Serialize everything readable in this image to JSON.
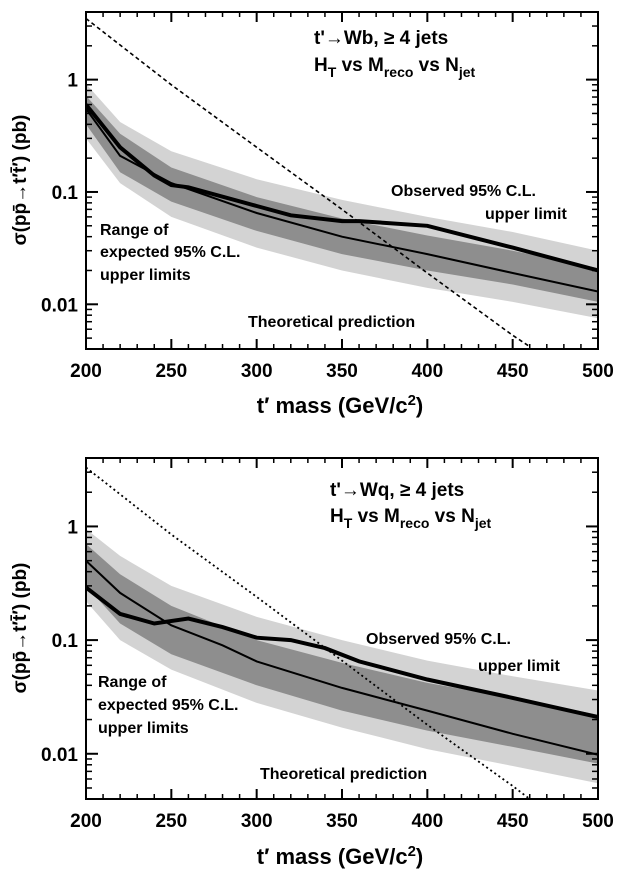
{
  "chart_data": [
    {
      "type": "line",
      "yscale": "log",
      "xlim": [
        200,
        500
      ],
      "ylim": [
        0.004,
        4
      ],
      "xticks": [
        "200",
        "250",
        "300",
        "350",
        "400",
        "450",
        "500"
      ],
      "yticks": [
        {
          "value": 1,
          "label": "1"
        },
        {
          "value": 0.1,
          "label": "0.1"
        },
        {
          "value": 0.01,
          "label": "0.01"
        }
      ],
      "xlabel": {
        "pre": "t′ mass (GeV/c",
        "sup": "2",
        "post": ")"
      },
      "ylabel": "σ(pp̄→t′t̄′)  (pb)",
      "title_line1": "t'→Wb, ≥ 4 jets",
      "title_line2": {
        "a": "H",
        "a_sub": "T",
        "b": " vs M",
        "b_sub": "reco",
        "c": "  vs N",
        "c_sub": "jet"
      },
      "annotations": {
        "observed_1": "Observed 95% C.L.",
        "observed_2": "upper limit",
        "range_1": "Range of",
        "range_2": "expected 95% C.L.",
        "range_3": "upper limits",
        "theory": "Theoretical prediction"
      },
      "colors": {
        "outer_band": "#d3d3d3",
        "inner_band": "#8e8e8e",
        "lines": "#000000"
      },
      "outer_band": {
        "x": [
          200,
          220,
          250,
          300,
          350,
          400,
          450,
          500
        ],
        "lower": [
          0.3,
          0.12,
          0.06,
          0.032,
          0.02,
          0.014,
          0.0105,
          0.0075
        ],
        "upper": [
          0.92,
          0.42,
          0.23,
          0.13,
          0.085,
          0.06,
          0.044,
          0.03
        ]
      },
      "inner_band": {
        "x": [
          200,
          220,
          250,
          300,
          350,
          400,
          450,
          500
        ],
        "lower": [
          0.4,
          0.15,
          0.082,
          0.045,
          0.028,
          0.02,
          0.015,
          0.0105
        ],
        "upper": [
          0.72,
          0.33,
          0.165,
          0.09,
          0.058,
          0.041,
          0.03,
          0.021
        ]
      },
      "series": [
        {
          "role": "expected",
          "x": [
            200,
            220,
            250,
            300,
            350,
            400,
            450,
            500
          ],
          "y": [
            0.55,
            0.21,
            0.12,
            0.065,
            0.04,
            0.028,
            0.019,
            0.013
          ]
        },
        {
          "role": "observed",
          "x": [
            200,
            220,
            240,
            250,
            260,
            300,
            320,
            350,
            360,
            400,
            450,
            500
          ],
          "y": [
            0.6,
            0.25,
            0.14,
            0.115,
            0.11,
            0.075,
            0.062,
            0.055,
            0.055,
            0.05,
            0.032,
            0.02
          ]
        },
        {
          "role": "theory",
          "x": [
            200,
            250,
            300,
            350,
            400,
            450,
            460
          ],
          "y": [
            3.5,
            0.9,
            0.25,
            0.07,
            0.019,
            0.0053,
            0.0042
          ]
        }
      ]
    },
    {
      "type": "line",
      "yscale": "log",
      "xlim": [
        200,
        500
      ],
      "ylim": [
        0.004,
        4
      ],
      "xticks": [
        "200",
        "250",
        "300",
        "350",
        "400",
        "450",
        "500"
      ],
      "yticks": [
        {
          "value": 1,
          "label": "1"
        },
        {
          "value": 0.1,
          "label": "0.1"
        },
        {
          "value": 0.01,
          "label": "0.01"
        }
      ],
      "xlabel": {
        "pre": "t′ mass (GeV/c",
        "sup": "2",
        "post": ")"
      },
      "ylabel": "σ(pp̄→t′t̄′)  (pb)",
      "title_line1": "t'→Wq, ≥ 4 jets",
      "title_line2": {
        "a": "H",
        "a_sub": "T",
        "b": " vs M",
        "b_sub": "reco",
        "c": "  vs N",
        "c_sub": "jet"
      },
      "annotations": {
        "observed_1": "Observed 95% C.L.",
        "observed_2": "upper limit",
        "range_1": "Range of",
        "range_2": "expected 95% C.L.",
        "range_3": "upper limits",
        "theory": "Theoretical prediction"
      },
      "colors": {
        "outer_band": "#d3d3d3",
        "inner_band": "#8e8e8e",
        "lines": "#000000"
      },
      "outer_band": {
        "x": [
          200,
          220,
          250,
          300,
          350,
          400,
          450,
          500
        ],
        "lower": [
          0.22,
          0.1,
          0.055,
          0.028,
          0.017,
          0.011,
          0.0078,
          0.0055
        ],
        "upper": [
          0.95,
          0.55,
          0.3,
          0.16,
          0.1,
          0.066,
          0.048,
          0.036
        ]
      },
      "inner_band": {
        "x": [
          200,
          220,
          250,
          300,
          350,
          400,
          450,
          500
        ],
        "lower": [
          0.3,
          0.14,
          0.075,
          0.04,
          0.024,
          0.016,
          0.0115,
          0.0082
        ],
        "upper": [
          0.7,
          0.38,
          0.2,
          0.1,
          0.063,
          0.042,
          0.031,
          0.022
        ]
      },
      "series": [
        {
          "role": "expected",
          "x": [
            200,
            220,
            250,
            280,
            300,
            350,
            400,
            450,
            500
          ],
          "y": [
            0.5,
            0.26,
            0.135,
            0.09,
            0.065,
            0.038,
            0.024,
            0.015,
            0.0098
          ]
        },
        {
          "role": "observed",
          "x": [
            200,
            220,
            240,
            260,
            280,
            300,
            320,
            340,
            360,
            400,
            450,
            500
          ],
          "y": [
            0.29,
            0.17,
            0.14,
            0.155,
            0.13,
            0.105,
            0.1,
            0.085,
            0.065,
            0.045,
            0.031,
            0.021
          ]
        },
        {
          "role": "theory",
          "x": [
            200,
            250,
            300,
            350,
            400,
            450,
            460
          ],
          "y": [
            3.3,
            0.85,
            0.24,
            0.066,
            0.018,
            0.0052,
            0.004
          ]
        }
      ]
    }
  ]
}
